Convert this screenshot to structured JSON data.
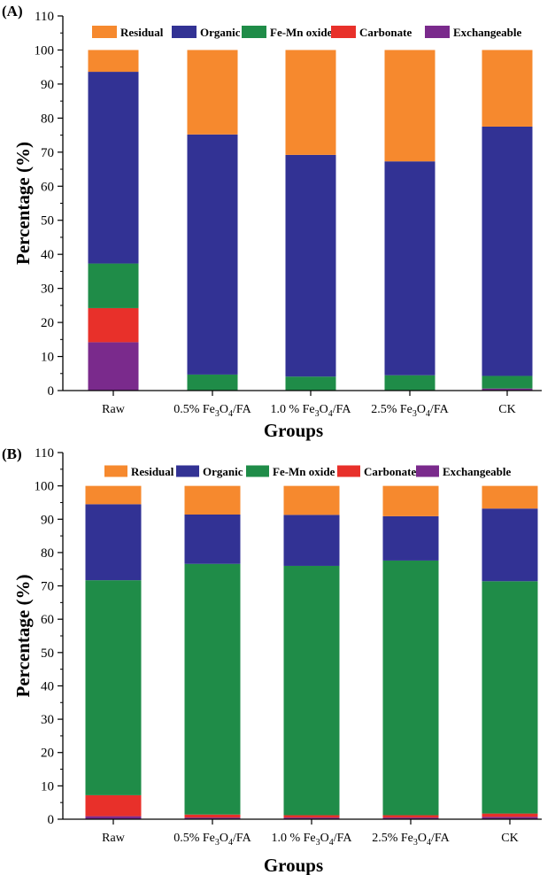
{
  "chart_data": [
    {
      "panel_label": "(A)",
      "type": "bar",
      "stacked": true,
      "categories": [
        "Raw",
        "0.5% Fe3O4/FA",
        "1.0 % Fe3O4/FA",
        "2.5% Fe3O4/FA",
        "CK"
      ],
      "category_parts": [
        {
          "main": "Raw",
          "sub1": "",
          "mid": "",
          "sub2": "",
          "tail": ""
        },
        {
          "main": "0.5% Fe",
          "sub1": "3",
          "mid": "O",
          "sub2": "4",
          "tail": "/FA"
        },
        {
          "main": "1.0 % Fe",
          "sub1": "3",
          "mid": "O",
          "sub2": "4",
          "tail": "/FA"
        },
        {
          "main": "2.5% Fe",
          "sub1": "3",
          "mid": "O",
          "sub2": "4",
          "tail": "/FA"
        },
        {
          "main": "CK",
          "sub1": "",
          "mid": "",
          "sub2": "",
          "tail": ""
        }
      ],
      "series": [
        {
          "name": "Exchangeable",
          "color": "#7a2a8c",
          "values": [
            14.2,
            0.0,
            0.0,
            0.0,
            0.6
          ]
        },
        {
          "name": "Carbonate",
          "color": "#e8302a",
          "values": [
            10.0,
            0.0,
            0.0,
            0.0,
            0.0
          ]
        },
        {
          "name": "Fe-Mn oxide",
          "color": "#1f8c48",
          "values": [
            13.1,
            4.7,
            4.1,
            4.5,
            3.7
          ]
        },
        {
          "name": "Organic",
          "color": "#323294",
          "values": [
            56.3,
            70.5,
            65.1,
            62.8,
            73.2
          ]
        },
        {
          "name": "Residual",
          "color": "#f6892e",
          "values": [
            6.4,
            24.8,
            30.8,
            32.7,
            22.5
          ]
        }
      ],
      "legend_order": [
        "Residual",
        "Organic",
        "Fe-Mn oxide",
        "Carbonate",
        "Exchangeable"
      ],
      "legend_placement": "top",
      "xlabel": "Groups",
      "ylabel": "Percentage (%)",
      "ylim": [
        0,
        110
      ],
      "yticks": [
        0,
        10,
        20,
        30,
        40,
        50,
        60,
        70,
        80,
        90,
        100,
        110
      ],
      "grid": false
    },
    {
      "panel_label": "(B)",
      "type": "bar",
      "stacked": true,
      "categories": [
        "Raw",
        "0.5% Fe3O4/FA",
        "1.0 % Fe3O4/FA",
        "2.5% Fe3O4/FA",
        "CK"
      ],
      "category_parts": [
        {
          "main": "Raw",
          "sub1": "",
          "mid": "",
          "sub2": "",
          "tail": ""
        },
        {
          "main": "0.5% Fe",
          "sub1": "3",
          "mid": "O",
          "sub2": "4",
          "tail": "/FA"
        },
        {
          "main": "1.0 % Fe",
          "sub1": "3",
          "mid": "O",
          "sub2": "4",
          "tail": "/FA"
        },
        {
          "main": "2.5% Fe",
          "sub1": "3",
          "mid": "O",
          "sub2": "4",
          "tail": "/FA"
        },
        {
          "main": "CK",
          "sub1": "",
          "mid": "",
          "sub2": "",
          "tail": ""
        }
      ],
      "series": [
        {
          "name": "Exchangeable",
          "color": "#7a2a8c",
          "values": [
            0.9,
            0.5,
            0.5,
            0.5,
            0.7
          ]
        },
        {
          "name": "Carbonate",
          "color": "#e8302a",
          "values": [
            6.3,
            0.9,
            0.7,
            0.7,
            1.0
          ]
        },
        {
          "name": "Fe-Mn oxide",
          "color": "#1f8c48",
          "values": [
            64.5,
            75.2,
            74.8,
            76.4,
            69.7
          ]
        },
        {
          "name": "Organic",
          "color": "#323294",
          "values": [
            22.8,
            14.8,
            15.3,
            13.3,
            21.8
          ]
        },
        {
          "name": "Residual",
          "color": "#f6892e",
          "values": [
            5.5,
            8.6,
            8.7,
            9.1,
            6.8
          ]
        }
      ],
      "legend_order": [
        "Residual",
        "Organic",
        "Fe-Mn oxide",
        "Carbonate",
        "Exchangeable"
      ],
      "legend_placement": "top",
      "xlabel": "Groups",
      "ylabel": "Percentage (%)",
      "ylim": [
        0,
        110
      ],
      "yticks": [
        0,
        10,
        20,
        30,
        40,
        50,
        60,
        70,
        80,
        90,
        100,
        110
      ],
      "grid": false
    }
  ]
}
